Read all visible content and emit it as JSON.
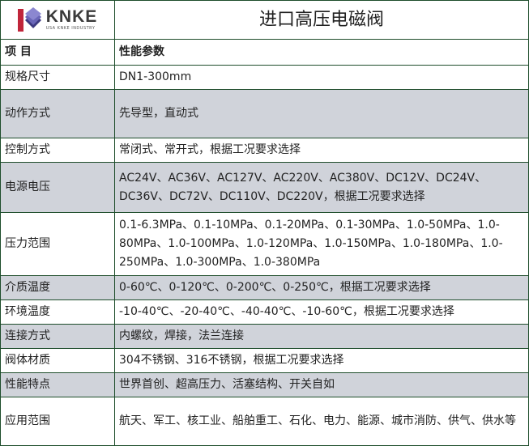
{
  "logo": {
    "brand": "KNKE",
    "subtitle": "USA KNKE INDUSTRY",
    "colors": {
      "red": "#c0253a",
      "purple": "#5a56a8"
    }
  },
  "title": "进口高压电磁阀",
  "header": {
    "item": "项 目",
    "param": "性能参数"
  },
  "rows": [
    {
      "label": "规格尺寸",
      "value": "DN1-300mm",
      "shaded": false
    },
    {
      "label": "动作方式",
      "value": "先导型，直动式",
      "shaded": true
    },
    {
      "label": "控制方式",
      "value": "常闭式、常开式，根据工况要求选择",
      "shaded": false
    },
    {
      "label": "电源电压",
      "value": "AC24V、AC36V、AC127V、AC220V、AC380V、DC12V、DC24V、DC36V、DC72V、DC110V、DC220V，根据工况要求选择",
      "shaded": true
    },
    {
      "label": "压力范围",
      "value": "0.1-6.3MPa、0.1-10MPa、0.1-20MPa、0.1-30MPa、1.0-50MPa、1.0-80MPa、1.0-100MPa、1.0-120MPa、1.0-150MPa、1.0-180MPa、1.0-250MPa、1.0-300MPa、1.0-380MPa",
      "shaded": false
    },
    {
      "label": "介质温度",
      "value": "0-60℃、0-120℃、0-200℃、0-250℃，根据工况要求选择",
      "shaded": true
    },
    {
      "label": "环境温度",
      "value": "-10-40℃、-20-40℃、-40-40℃、-10-60℃，根据工况要求选择",
      "shaded": false
    },
    {
      "label": "连接方式",
      "value": "内螺纹，焊接，法兰连接",
      "shaded": true
    },
    {
      "label": "阀体材质",
      "value": "304不锈钢、316不锈钢，根据工况要求选择",
      "shaded": false
    },
    {
      "label": "性能特点",
      "value": "世界首创、超高压力、活塞结构、开关自如",
      "shaded": true
    },
    {
      "label": "应用范围",
      "value": "航天、军工、核工业、船舶重工、石化、电力、能源、城市消防、供气、供水等",
      "shaded": false
    }
  ]
}
